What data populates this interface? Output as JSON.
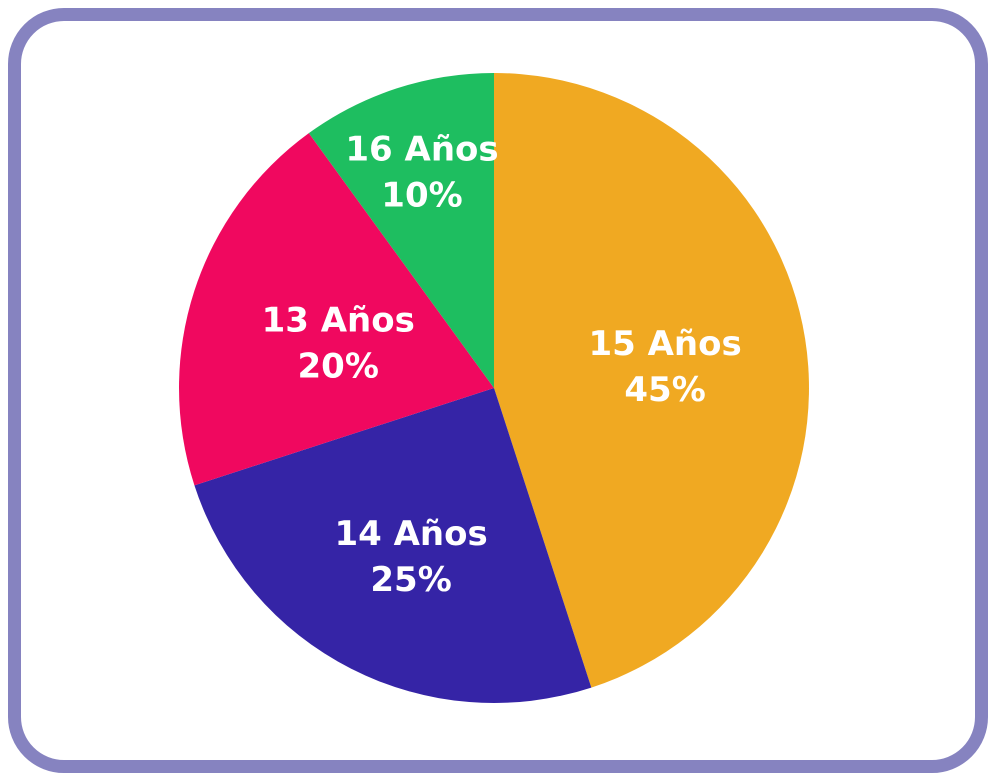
{
  "frame_color": "#8683c0",
  "chart_data": {
    "type": "pie",
    "title": "",
    "start": "top",
    "direction": "clockwise",
    "slices": [
      {
        "label": "15 Años",
        "value": 45,
        "value_label": "45%",
        "color": "#f0a922"
      },
      {
        "label": "14 Años",
        "value": 25,
        "value_label": "25%",
        "color": "#3524a6"
      },
      {
        "label": "13 Años",
        "value": 20,
        "value_label": "20%",
        "color": "#f0085f"
      },
      {
        "label": "16 Años",
        "value": 10,
        "value_label": "10%",
        "color": "#1ebe60"
      }
    ]
  }
}
